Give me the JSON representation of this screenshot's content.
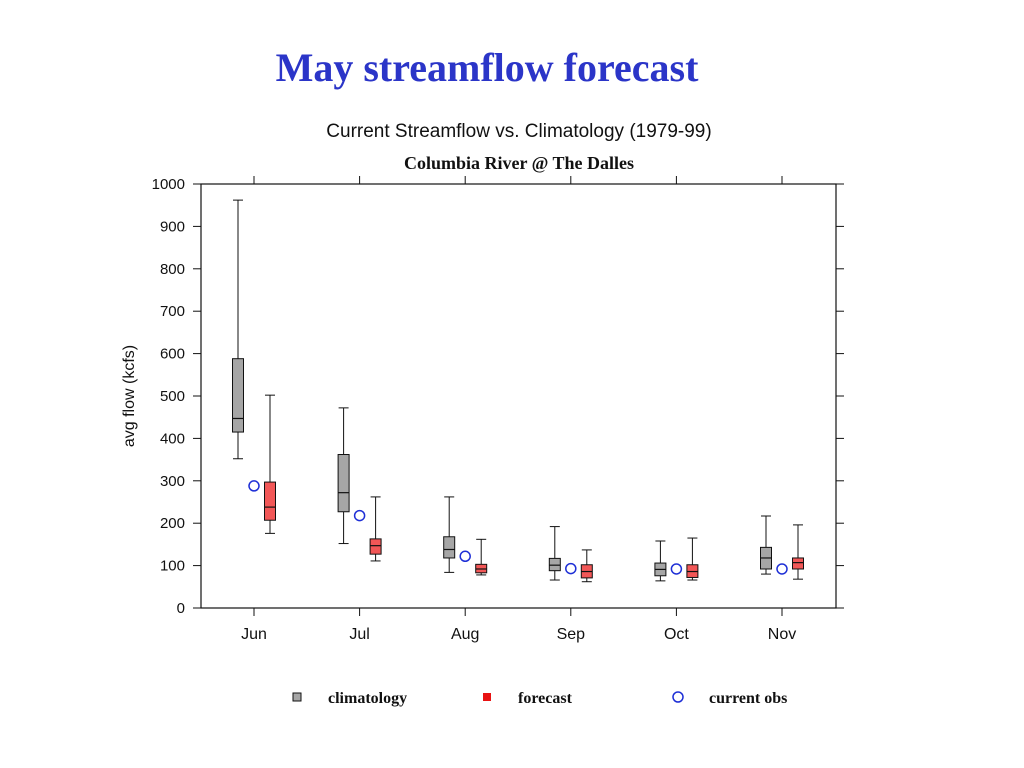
{
  "page": {
    "title": "May streamflow forecast"
  },
  "chart_data": {
    "type": "box",
    "title": "Current Streamflow vs. Climatology (1979-99)",
    "subtitle": "Columbia River @ The Dalles",
    "xlabel": "",
    "ylabel": "avg flow (kcfs)",
    "ylim": [
      0,
      1000
    ],
    "yticks": [
      0,
      100,
      200,
      300,
      400,
      500,
      600,
      700,
      800,
      900,
      1000
    ],
    "categories": [
      "Jun",
      "Jul",
      "Aug",
      "Sep",
      "Oct",
      "Nov"
    ],
    "grid": false,
    "legend_position": "bottom",
    "series": [
      {
        "name": "climatology",
        "type": "box",
        "color": "#a6a6a6",
        "boxes": [
          {
            "min": 352,
            "q1": 415,
            "median": 447,
            "q3": 588,
            "max": 962
          },
          {
            "min": 152,
            "q1": 227,
            "median": 272,
            "q3": 362,
            "max": 472
          },
          {
            "min": 84,
            "q1": 118,
            "median": 138,
            "q3": 168,
            "max": 262
          },
          {
            "min": 66,
            "q1": 88,
            "median": 101,
            "q3": 117,
            "max": 192
          },
          {
            "min": 64,
            "q1": 76,
            "median": 91,
            "q3": 106,
            "max": 158
          },
          {
            "min": 80,
            "q1": 92,
            "median": 118,
            "q3": 143,
            "max": 217
          }
        ]
      },
      {
        "name": "forecast",
        "type": "box",
        "color": "#f25757",
        "boxes": [
          {
            "min": 176,
            "q1": 207,
            "median": 238,
            "q3": 297,
            "max": 502
          },
          {
            "min": 111,
            "q1": 127,
            "median": 147,
            "q3": 163,
            "max": 262
          },
          {
            "min": 78,
            "q1": 83,
            "median": 92,
            "q3": 103,
            "max": 162
          },
          {
            "min": 62,
            "q1": 71,
            "median": 86,
            "q3": 102,
            "max": 137
          },
          {
            "min": 66,
            "q1": 72,
            "median": 86,
            "q3": 102,
            "max": 165
          },
          {
            "min": 68,
            "q1": 92,
            "median": 107,
            "q3": 118,
            "max": 196
          }
        ]
      },
      {
        "name": "current obs",
        "type": "scatter",
        "color": "#1e2fd6",
        "values": [
          288,
          218,
          122,
          93,
          92,
          92
        ]
      }
    ]
  }
}
